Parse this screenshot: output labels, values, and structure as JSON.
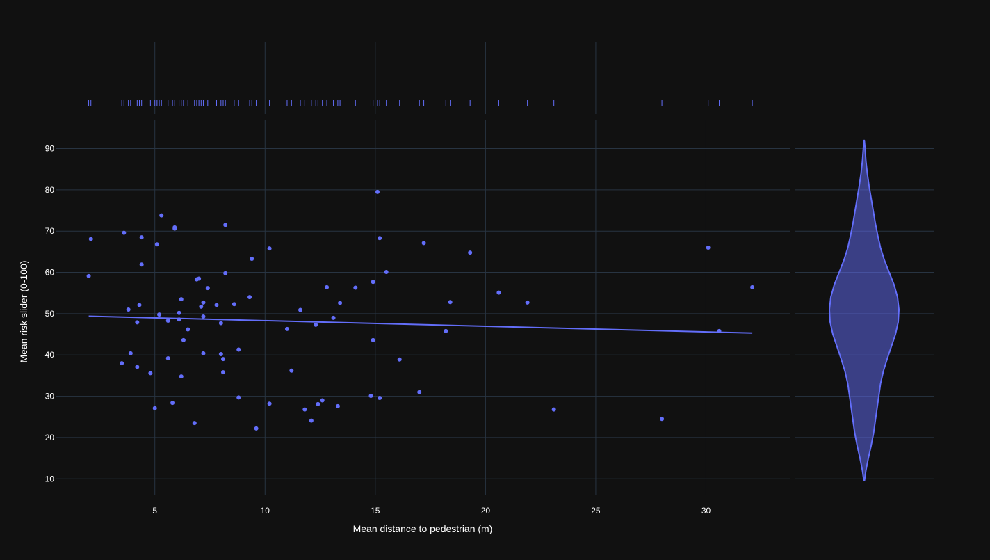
{
  "colors": {
    "background": "#111111",
    "grid": "#283442",
    "marker": "#636efa",
    "violin_fill": "rgba(99,110,250,0.5)",
    "text": "#ffffff"
  },
  "chart_data": {
    "type": "scatter",
    "title": "",
    "xlabel": "Mean distance to pedestrian (m)",
    "ylabel": "Mean risk slider (0-100)",
    "xlim": [
      0.5,
      33.8
    ],
    "ylim": [
      6,
      97
    ],
    "xticks": [
      5,
      10,
      15,
      20,
      25,
      30
    ],
    "yticks": [
      10,
      20,
      30,
      40,
      50,
      60,
      70,
      80,
      90
    ],
    "grid": true,
    "marginal_x": "rug",
    "marginal_y": "violin",
    "trendline": {
      "type": "ols",
      "x": [
        2.0,
        32.1
      ],
      "y": [
        49.4,
        45.3
      ]
    },
    "points": [
      [
        2.1,
        68.1
      ],
      [
        2.0,
        59.1
      ],
      [
        3.5,
        38.0
      ],
      [
        3.6,
        69.6
      ],
      [
        3.8,
        51.0
      ],
      [
        3.9,
        40.4
      ],
      [
        4.2,
        37.1
      ],
      [
        4.2,
        47.9
      ],
      [
        4.3,
        52.1
      ],
      [
        4.4,
        68.5
      ],
      [
        4.4,
        61.9
      ],
      [
        4.8,
        35.6
      ],
      [
        5.0,
        27.1
      ],
      [
        5.1,
        66.8
      ],
      [
        5.2,
        49.8
      ],
      [
        5.3,
        73.8
      ],
      [
        5.6,
        48.3
      ],
      [
        5.6,
        39.2
      ],
      [
        5.8,
        28.4
      ],
      [
        5.9,
        70.9
      ],
      [
        5.9,
        70.6
      ],
      [
        6.1,
        48.6
      ],
      [
        6.1,
        50.2
      ],
      [
        6.2,
        34.8
      ],
      [
        6.2,
        53.5
      ],
      [
        6.3,
        43.6
      ],
      [
        6.5,
        46.2
      ],
      [
        6.8,
        23.5
      ],
      [
        6.9,
        58.3
      ],
      [
        7.0,
        58.5
      ],
      [
        7.1,
        51.7
      ],
      [
        7.2,
        52.7
      ],
      [
        7.2,
        40.4
      ],
      [
        7.2,
        49.3
      ],
      [
        7.4,
        56.2
      ],
      [
        7.8,
        52.1
      ],
      [
        8.0,
        47.7
      ],
      [
        8.0,
        40.2
      ],
      [
        8.1,
        39.0
      ],
      [
        8.1,
        35.8
      ],
      [
        8.2,
        71.5
      ],
      [
        8.2,
        59.8
      ],
      [
        8.6,
        52.3
      ],
      [
        8.8,
        41.3
      ],
      [
        8.8,
        29.7
      ],
      [
        9.3,
        54.0
      ],
      [
        9.4,
        63.3
      ],
      [
        9.6,
        22.2
      ],
      [
        10.2,
        65.8
      ],
      [
        10.2,
        28.2
      ],
      [
        11.0,
        46.3
      ],
      [
        11.2,
        36.2
      ],
      [
        11.6,
        50.9
      ],
      [
        11.8,
        26.8
      ],
      [
        12.1,
        24.1
      ],
      [
        12.3,
        47.3
      ],
      [
        12.4,
        28.1
      ],
      [
        12.6,
        29.0
      ],
      [
        12.8,
        56.4
      ],
      [
        13.1,
        49.0
      ],
      [
        13.3,
        27.6
      ],
      [
        13.4,
        52.6
      ],
      [
        14.1,
        56.3
      ],
      [
        14.8,
        30.1
      ],
      [
        14.9,
        43.6
      ],
      [
        14.9,
        57.7
      ],
      [
        15.1,
        79.5
      ],
      [
        15.2,
        68.3
      ],
      [
        15.2,
        29.6
      ],
      [
        15.5,
        60.1
      ],
      [
        16.1,
        38.9
      ],
      [
        17.0,
        31.0
      ],
      [
        17.2,
        67.1
      ],
      [
        18.2,
        45.8
      ],
      [
        18.4,
        52.8
      ],
      [
        19.3,
        64.8
      ],
      [
        20.6,
        55.1
      ],
      [
        21.9,
        52.7
      ],
      [
        23.1,
        26.8
      ],
      [
        28.0,
        24.5
      ],
      [
        30.1,
        66.0
      ],
      [
        30.6,
        45.8
      ],
      [
        32.1,
        56.4
      ]
    ],
    "rug_x": [
      2.0,
      2.1,
      3.5,
      3.6,
      3.8,
      3.9,
      4.2,
      4.3,
      4.4,
      4.8,
      5.0,
      5.1,
      5.2,
      5.3,
      5.6,
      5.8,
      5.9,
      6.1,
      6.2,
      6.3,
      6.5,
      6.8,
      6.9,
      7.0,
      7.1,
      7.2,
      7.4,
      7.8,
      8.0,
      8.1,
      8.2,
      8.6,
      8.8,
      9.3,
      9.4,
      9.6,
      10.2,
      11.0,
      11.2,
      11.6,
      11.8,
      12.1,
      12.3,
      12.4,
      12.6,
      12.8,
      13.1,
      13.3,
      13.4,
      14.1,
      14.8,
      14.9,
      15.1,
      15.2,
      15.5,
      16.1,
      17.0,
      17.2,
      18.2,
      18.4,
      19.3,
      20.6,
      21.9,
      23.1,
      28.0,
      30.1,
      30.6,
      32.1
    ],
    "violin_profile": [
      [
        9.6,
        0.01
      ],
      [
        12,
        0.05
      ],
      [
        15,
        0.12
      ],
      [
        18,
        0.2
      ],
      [
        21,
        0.27
      ],
      [
        24,
        0.32
      ],
      [
        27,
        0.37
      ],
      [
        30,
        0.42
      ],
      [
        33,
        0.47
      ],
      [
        36,
        0.55
      ],
      [
        39,
        0.66
      ],
      [
        42,
        0.78
      ],
      [
        45,
        0.9
      ],
      [
        48,
        0.98
      ],
      [
        51,
        1.0
      ],
      [
        54,
        0.96
      ],
      [
        57,
        0.86
      ],
      [
        60,
        0.72
      ],
      [
        63,
        0.58
      ],
      [
        66,
        0.47
      ],
      [
        69,
        0.39
      ],
      [
        72,
        0.32
      ],
      [
        75,
        0.26
      ],
      [
        78,
        0.2
      ],
      [
        81,
        0.14
      ],
      [
        84,
        0.09
      ],
      [
        87,
        0.05
      ],
      [
        90,
        0.025
      ],
      [
        92,
        0.005
      ]
    ]
  }
}
